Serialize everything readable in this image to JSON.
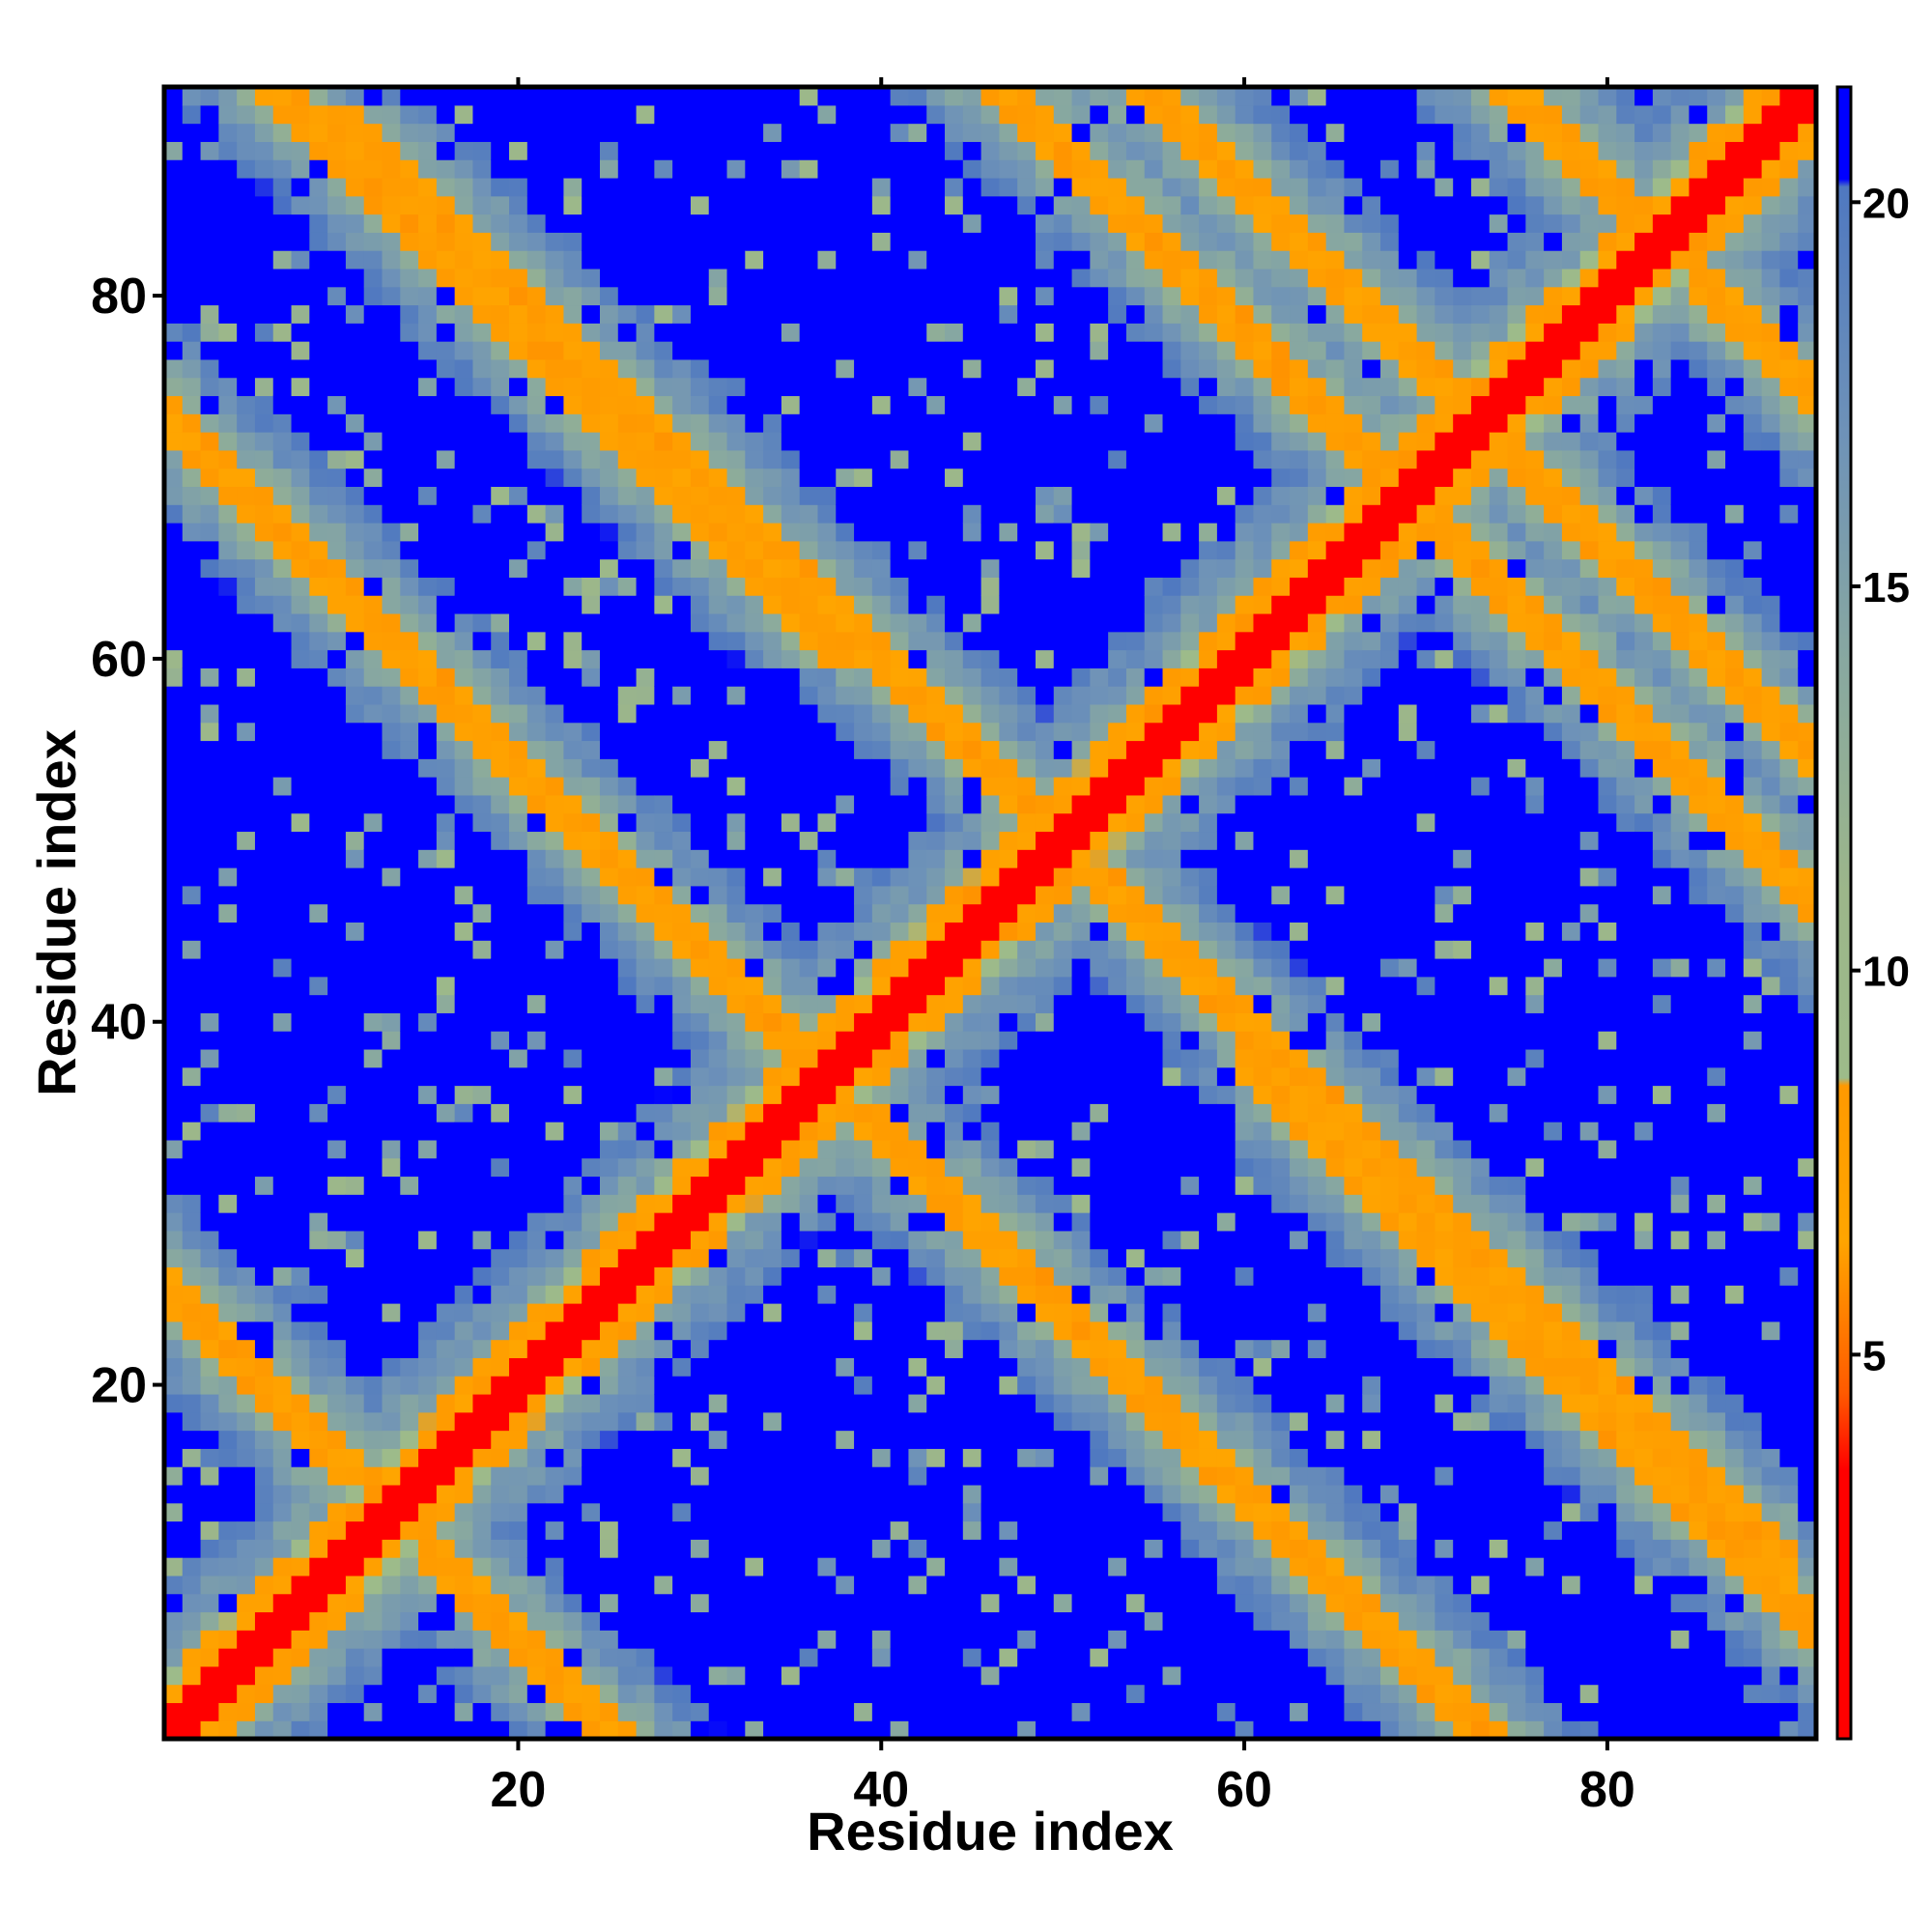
{
  "chart_data": {
    "type": "heatmap",
    "title": "",
    "xlabel": "Residue index",
    "ylabel": "Residue index",
    "n_residues": 91,
    "xlim": [
      1,
      91
    ],
    "ylim": [
      1,
      91
    ],
    "xticks": [
      20,
      40,
      60,
      80
    ],
    "yticks": [
      20,
      40,
      60,
      80
    ],
    "colorbar": {
      "range": [
        0,
        21.5
      ],
      "ticks": [
        5,
        10,
        15,
        20
      ],
      "placement": "right",
      "stops": [
        {
          "value": 0,
          "color": "#ff0000"
        },
        {
          "value": 3.5,
          "color": "#ff0000"
        },
        {
          "value": 4.5,
          "color": "#ff5a00"
        },
        {
          "value": 6.5,
          "color": "#ffa500"
        },
        {
          "value": 8.5,
          "color": "#ff9900"
        },
        {
          "value": 8.6,
          "color": "#9dbb8a"
        },
        {
          "value": 11,
          "color": "#9cb68a"
        },
        {
          "value": 14,
          "color": "#88a8a0"
        },
        {
          "value": 17,
          "color": "#6e92b8"
        },
        {
          "value": 20.2,
          "color": "#4f78c0"
        },
        {
          "value": 20.3,
          "color": "#0000ff"
        },
        {
          "value": 21.5,
          "color": "#0000ff"
        }
      ],
      "max_color": "#0000ff"
    },
    "structure": {
      "description_values": "distance matrix; diagonal ~0, off-diagonal band values read from colour",
      "diagonal_value": 1,
      "anti_diagonal_bands": [
        {
          "sum": 26,
          "from": 1,
          "to": 25,
          "value": 6
        },
        {
          "sum": 74,
          "from": 30,
          "to": 44,
          "value": 6
        },
        {
          "sum": 74,
          "from": 11,
          "to": 20,
          "value": 6
        },
        {
          "sum": 98,
          "from": 60,
          "to": 75,
          "value": 6
        },
        {
          "sum": 100,
          "from": 17,
          "to": 30,
          "value": 6
        },
        {
          "sum": 138,
          "from": 64,
          "to": 75,
          "value": 6
        },
        {
          "sum": 146,
          "from": 61,
          "to": 88,
          "value": 6
        },
        {
          "sum": 166,
          "from": 77,
          "to": 89,
          "value": 6
        }
      ],
      "background_value": 21.5,
      "band_value_range": [
        9,
        20
      ]
    }
  }
}
